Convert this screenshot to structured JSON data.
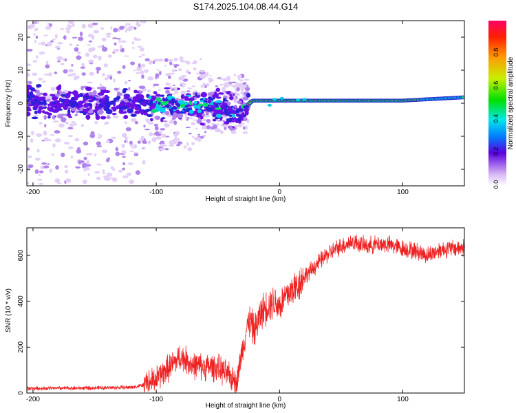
{
  "title": "S174.2025.104.08.44.G14",
  "chart_data": [
    {
      "type": "heatmap",
      "xlabel": "Height of straight line (km)",
      "ylabel": "Frequency (Hz)",
      "xlim": [
        -205,
        150
      ],
      "ylim": [
        -25,
        25
      ],
      "x_ticks": [
        "-200",
        "-100",
        "0",
        "100"
      ],
      "y_ticks": [
        "-20",
        "-10",
        "0",
        "10",
        "20"
      ],
      "colorbar": {
        "label": "Normalized spectral amplitude",
        "range": [
          0.0,
          1.0
        ],
        "ticks": [
          "0.0",
          "0.2",
          "0.4",
          "0.6",
          "0.8"
        ]
      },
      "ridge": [
        {
          "x": -200,
          "y": 0
        },
        {
          "x": -100,
          "y": 0
        },
        {
          "x": -45,
          "y": -1
        },
        {
          "x": -33,
          "y": -3
        },
        {
          "x": -22,
          "y": 0.8
        },
        {
          "x": 0,
          "y": 0.8
        },
        {
          "x": 100,
          "y": 0.8
        },
        {
          "x": 120,
          "y": 1.2
        },
        {
          "x": 150,
          "y": 1.8
        }
      ],
      "grid": false
    },
    {
      "type": "line",
      "xlabel": "Height of straight line (km)",
      "ylabel": "SNR (10 * v/v)",
      "xlim": [
        -205,
        150
      ],
      "ylim": [
        0,
        720
      ],
      "x_ticks": [
        "-200",
        "-100",
        "0",
        "100"
      ],
      "y_ticks": [
        "0",
        "200",
        "400",
        "600"
      ],
      "color": "#ee2222",
      "series": [
        {
          "x": [
            -205,
            -150,
            -120,
            -110,
            -100,
            -90,
            -80,
            -70,
            -60,
            -50,
            -40,
            -35,
            -30,
            -25,
            -20,
            -15,
            -10,
            -5,
            0,
            5,
            10,
            15,
            20,
            25,
            30,
            40,
            50,
            60,
            70,
            80,
            90,
            100,
            110,
            120,
            130,
            140,
            150
          ],
          "y": [
            20,
            22,
            25,
            35,
            60,
            110,
            160,
            120,
            115,
            110,
            70,
            50,
            190,
            320,
            270,
            350,
            380,
            400,
            380,
            420,
            450,
            470,
            510,
            530,
            560,
            610,
            640,
            660,
            640,
            650,
            645,
            630,
            620,
            600,
            625,
            630,
            635
          ]
        }
      ],
      "grid": false
    }
  ]
}
